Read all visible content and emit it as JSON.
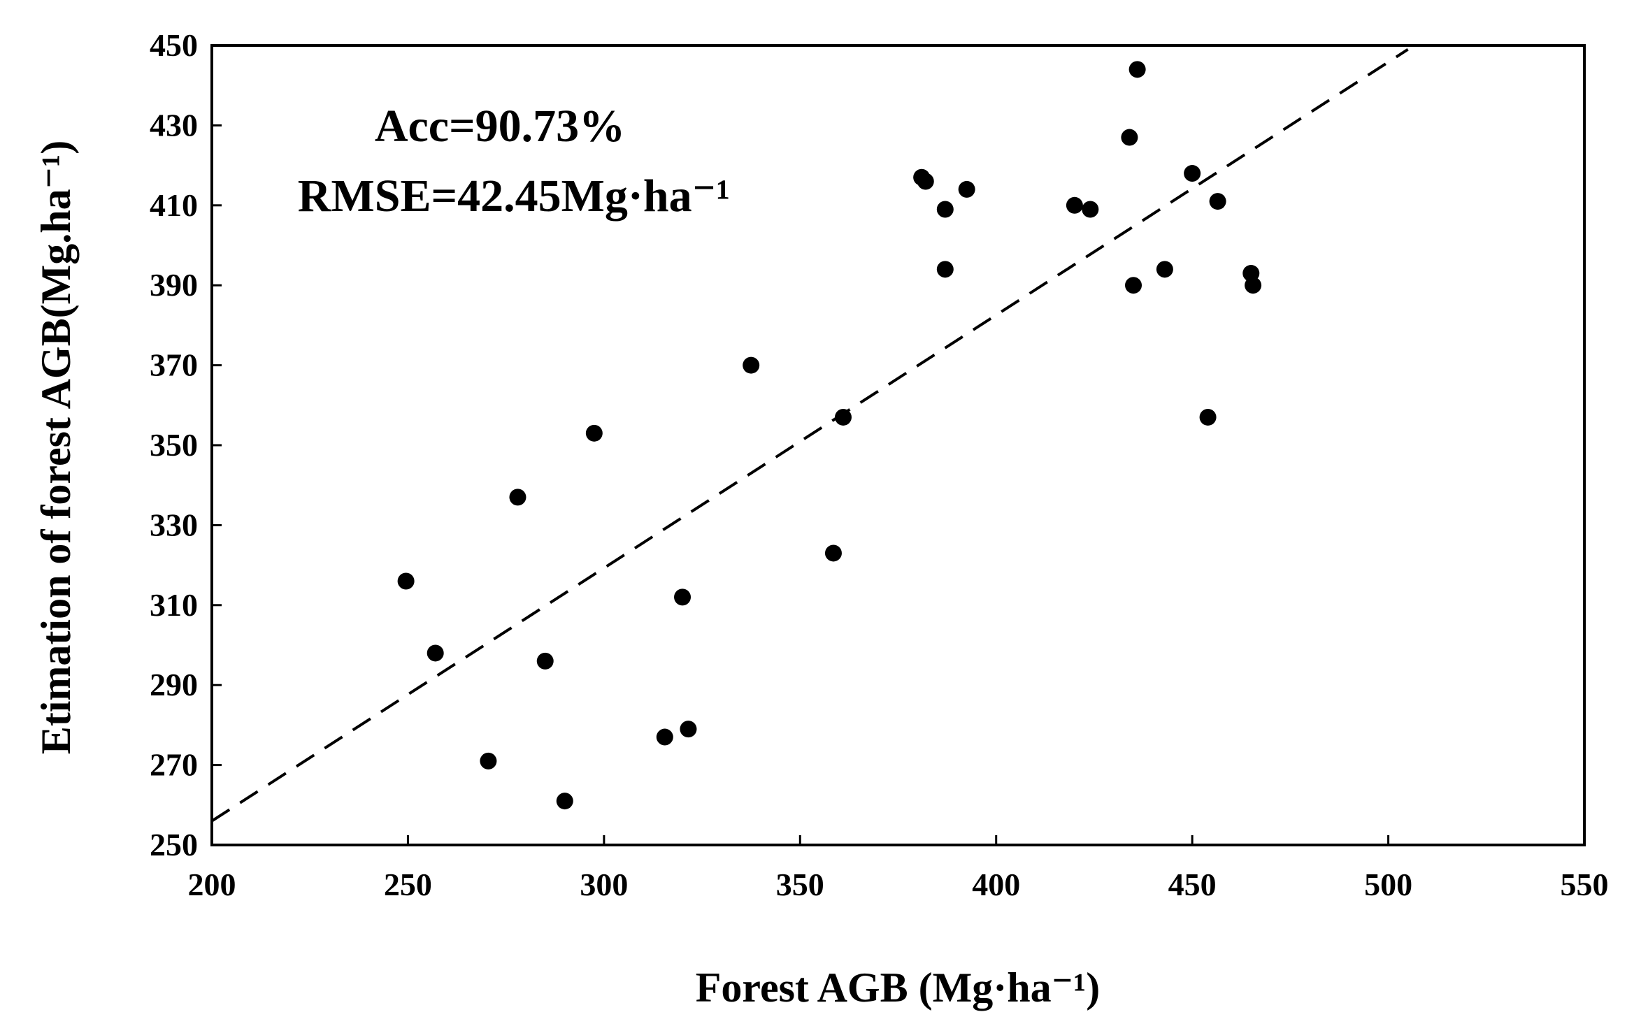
{
  "chart_data": {
    "type": "scatter",
    "xlabel": "Forest AGB (Mg·ha⁻¹)",
    "ylabel": "Etimation of forest AGB(Mg.ha⁻¹)",
    "xlim": [
      200,
      550
    ],
    "ylim": [
      250,
      450
    ],
    "xticks": [
      "200",
      "250",
      "300",
      "350",
      "400",
      "450",
      "500",
      "550"
    ],
    "yticks": [
      "250",
      "270",
      "290",
      "310",
      "330",
      "350",
      "370",
      "390",
      "410",
      "430",
      "450"
    ],
    "annotations": [
      "Acc=90.73%",
      "RMSE=42.45Mg·ha⁻¹"
    ],
    "grid": false,
    "legend": "none",
    "marker_color": "#000000",
    "fit_line": {
      "style": "dashed",
      "points": [
        [
          200,
          256
        ],
        [
          505,
          449
        ]
      ]
    },
    "points": [
      [
        249.5,
        316
      ],
      [
        257,
        298
      ],
      [
        270.5,
        271
      ],
      [
        278,
        337
      ],
      [
        285,
        296
      ],
      [
        290,
        261
      ],
      [
        297.5,
        353
      ],
      [
        315.5,
        277
      ],
      [
        320,
        312
      ],
      [
        321.5,
        279
      ],
      [
        337.5,
        370
      ],
      [
        358.5,
        323
      ],
      [
        361,
        357
      ],
      [
        381,
        417
      ],
      [
        382,
        416
      ],
      [
        387,
        409
      ],
      [
        387,
        394
      ],
      [
        392.5,
        414
      ],
      [
        420,
        410
      ],
      [
        424,
        409
      ],
      [
        434,
        427
      ],
      [
        435,
        390
      ],
      [
        436,
        444
      ],
      [
        443,
        394
      ],
      [
        450,
        418
      ],
      [
        454,
        357
      ],
      [
        456.5,
        411
      ],
      [
        465,
        393
      ],
      [
        465.5,
        390
      ]
    ]
  }
}
